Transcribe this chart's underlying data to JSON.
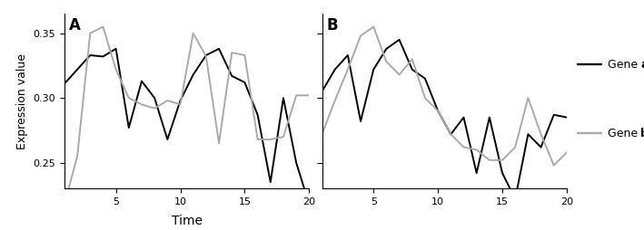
{
  "panel_A": {
    "gene_a": [
      0.311,
      0.322,
      0.333,
      0.332,
      0.338,
      0.277,
      0.313,
      0.3,
      0.268,
      0.298,
      0.318,
      0.333,
      0.338,
      0.317,
      0.312,
      0.287,
      0.235,
      0.3,
      0.25,
      0.218
    ],
    "gene_b": [
      0.218,
      0.255,
      0.35,
      0.355,
      0.322,
      0.3,
      0.295,
      0.292,
      0.298,
      0.295,
      0.35,
      0.332,
      0.265,
      0.335,
      0.333,
      0.268,
      0.268,
      0.27,
      0.302,
      0.302
    ]
  },
  "panel_B": {
    "gene_a": [
      0.305,
      0.322,
      0.333,
      0.282,
      0.322,
      0.338,
      0.345,
      0.322,
      0.315,
      0.29,
      0.272,
      0.285,
      0.242,
      0.285,
      0.242,
      0.222,
      0.272,
      0.262,
      0.287,
      0.285
    ],
    "gene_b": [
      0.272,
      0.298,
      0.322,
      0.348,
      0.355,
      0.328,
      0.318,
      0.33,
      0.3,
      0.29,
      0.272,
      0.262,
      0.26,
      0.252,
      0.252,
      0.262,
      0.3,
      0.272,
      0.248,
      0.258
    ]
  },
  "xvals": [
    1,
    2,
    3,
    4,
    5,
    6,
    7,
    8,
    9,
    10,
    11,
    12,
    13,
    14,
    15,
    16,
    17,
    18,
    19,
    20
  ],
  "ylim": [
    0.23,
    0.365
  ],
  "yticks": [
    0.25,
    0.3,
    0.35
  ],
  "ytick_labels": [
    "0.25",
    "0.30",
    "0.35"
  ],
  "xticks": [
    5,
    10,
    15,
    20
  ],
  "xlabel": "Time",
  "ylabel": "Expression value",
  "color_a": "#000000",
  "color_b": "#aaaaaa",
  "label_A": "A",
  "label_B": "B",
  "linewidth": 1.4
}
